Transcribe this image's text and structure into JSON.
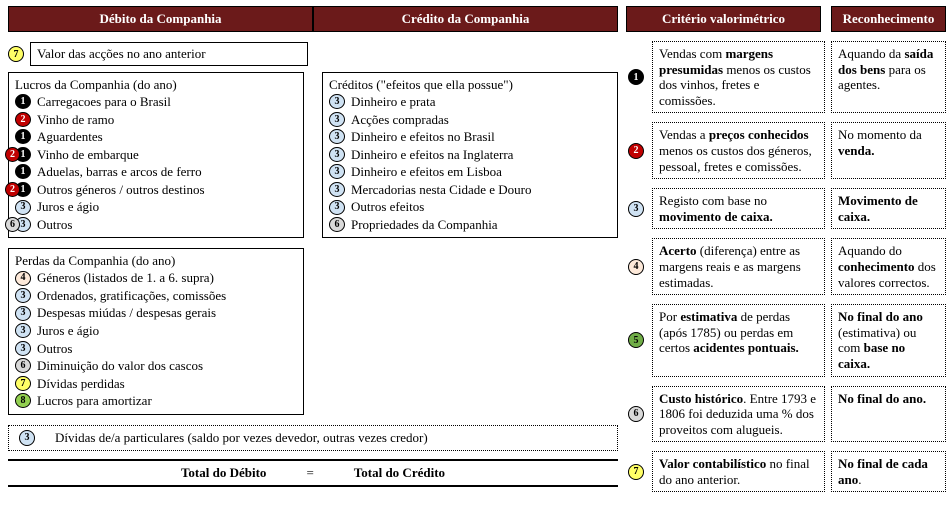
{
  "colors": {
    "header_bg": "#6b1a1a",
    "b1": "#000000",
    "b1t": "#ffffff",
    "b2": "#c00000",
    "b2t": "#ffffff",
    "b3": "#cfe2f3",
    "b3t": "#000000",
    "b4": "#fde9d9",
    "b4t": "#000000",
    "b5": "#70ad47",
    "b5t": "#000000",
    "b6": "#d9d9d9",
    "b6t": "#000000",
    "b7": "#ffff66",
    "b7t": "#000000",
    "b8": "#92d050",
    "b8t": "#000000"
  },
  "left": {
    "header_debito": "Débito da Companhia",
    "header_credito": "Crédito da Companhia",
    "valor_accoes": "Valor das acções no ano anterior",
    "lucros_title": "Lucros da Companhia (do ano)",
    "lucros": [
      {
        "badges": [
          1
        ],
        "txt": "Carregacoes para o Brasil"
      },
      {
        "badges": [
          2
        ],
        "txt": "Vinho de ramo"
      },
      {
        "badges": [
          1
        ],
        "txt": "Aguardentes"
      },
      {
        "badges": [
          1
        ],
        "txt": "Vinho de embarque",
        "ov": 2
      },
      {
        "badges": [
          1
        ],
        "txt": "Aduelas, barras e arcos de ferro"
      },
      {
        "badges": [
          1
        ],
        "txt": "Outros géneros / outros destinos",
        "ov": 2
      },
      {
        "badges": [
          3
        ],
        "txt": "Juros e ágio"
      },
      {
        "badges": [
          3
        ],
        "txt": "Outros",
        "ov": 6
      }
    ],
    "perdas_title": "Perdas da Companhia (do ano)",
    "perdas": [
      {
        "badges": [
          4
        ],
        "txt": "Géneros (listados de 1. a 6. supra)"
      },
      {
        "badges": [
          3
        ],
        "txt": "Ordenados, gratificações, comissões"
      },
      {
        "badges": [
          3
        ],
        "txt": "Despesas miúdas / despesas gerais"
      },
      {
        "badges": [
          3
        ],
        "txt": "Juros e ágio"
      },
      {
        "badges": [
          3
        ],
        "txt": "Outros"
      },
      {
        "badges": [
          6
        ],
        "txt": "Diminuição do valor dos cascos"
      },
      {
        "badges": [
          7
        ],
        "txt": "Dívidas perdidas"
      },
      {
        "badges": [
          8
        ],
        "txt": "Lucros para amortizar"
      }
    ],
    "creditos_title": "Créditos (\"efeitos que ella possue\")",
    "creditos": [
      {
        "badges": [
          3
        ],
        "txt": "Dinheiro e prata"
      },
      {
        "badges": [
          3
        ],
        "txt": "Acções compradas"
      },
      {
        "badges": [
          3
        ],
        "txt": "Dinheiro e efeitos no Brasil"
      },
      {
        "badges": [
          3
        ],
        "txt": "Dinheiro e efeitos na Inglaterra"
      },
      {
        "badges": [
          3
        ],
        "txt": "Dinheiro e efeitos em Lisboa"
      },
      {
        "badges": [
          3
        ],
        "txt": "Mercadorias nesta Cidade e Douro"
      },
      {
        "badges": [
          3
        ],
        "txt": "Outros efeitos"
      },
      {
        "badges": [
          6
        ],
        "txt": "Propriedades da Companhia"
      }
    ],
    "dividas": "Dívidas de/a particulares (saldo por vezes devedor, outras vezes credor)",
    "total_debito": "Total do Débito",
    "total_credito": "Total do Crédito",
    "eq": "="
  },
  "right": {
    "header_crit": "Critério  valorimétrico",
    "header_rec": "Reconhecimento",
    "rows": [
      {
        "n": 1,
        "crit": "Vendas com <b>margens presumidas</b> menos os custos dos vinhos, fretes e comissões.",
        "rec": "Aquando da <b>saída dos bens</b> para os agentes."
      },
      {
        "n": 2,
        "crit": "Vendas a <b>preços conhecidos</b> menos os custos dos géneros, pessoal, fretes e comissões.",
        "rec": "No momento da <b>venda.</b>"
      },
      {
        "n": 3,
        "crit": "Registo com base no <b>movimento de caixa.</b>",
        "rec": "<b>Movimento de caixa.</b>"
      },
      {
        "n": 4,
        "crit": "<b>Acerto</b> (diferença) entre as margens reais e as margens estimadas.",
        "rec": "Aquando do <b>conhecimento</b> dos valores correctos."
      },
      {
        "n": 5,
        "crit": "Por <b>estimativa</b> de perdas (após 1785) ou perdas em certos <b>acidentes pontuais.</b>",
        "rec": "<b>No final do ano</b> (estimativa) ou com <b>base no caixa.</b>"
      },
      {
        "n": 6,
        "crit": "<b>Custo histórico</b>. Entre 1793 e 1806 foi deduzida uma % dos proveitos com alugueis.",
        "rec": "<b>No final do ano.</b>"
      },
      {
        "n": 7,
        "crit": "<b>Valor contabilístico</b> no final do ano anterior.",
        "rec": "<b>No final de cada ano</b>."
      }
    ]
  }
}
